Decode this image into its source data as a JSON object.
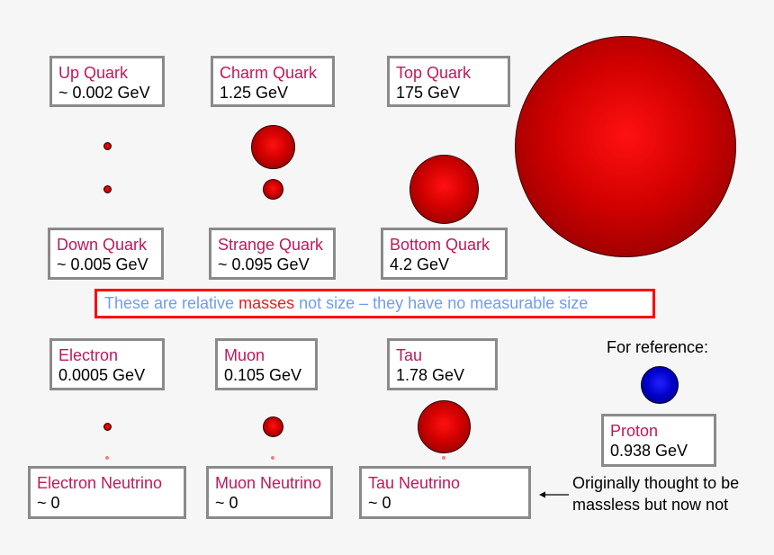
{
  "particles": [
    {
      "name": "Up Quark",
      "mass": "~ 0.002 GeV"
    },
    {
      "name": "Charm Quark",
      "mass": "1.25 GeV"
    },
    {
      "name": "Top Quark",
      "mass": "175 GeV"
    },
    {
      "name": "Down Quark",
      "mass": "~ 0.005 GeV"
    },
    {
      "name": "Strange Quark",
      "mass": "~ 0.095 GeV"
    },
    {
      "name": "Bottom Quark",
      "mass": "4.2 GeV"
    },
    {
      "name": "Electron",
      "mass": "0.0005 GeV"
    },
    {
      "name": "Muon",
      "mass": "0.105 GeV"
    },
    {
      "name": "Tau",
      "mass": "1.78 GeV"
    },
    {
      "name": "Electron Neutrino",
      "mass": "~ 0"
    },
    {
      "name": "Muon Neutrino",
      "mass": "~ 0"
    },
    {
      "name": "Tau Neutrino",
      "mass": "~ 0"
    },
    {
      "name": "Proton",
      "mass": "0.938 GeV"
    }
  ],
  "banner": {
    "before": "These are relative ",
    "highlight": "masses",
    "after": " not size – they have no measurable size"
  },
  "reference_label": "For reference:",
  "neutrino_note": {
    "line1": "Originally thought to be",
    "line2": "massless but now not"
  },
  "colors": {
    "label": "#c0185a",
    "particle": "#d00000",
    "proton": "#0000c8",
    "banner_border": "#ff0000",
    "banner_text": "#6f9cf0",
    "highlight": "#e52020"
  }
}
